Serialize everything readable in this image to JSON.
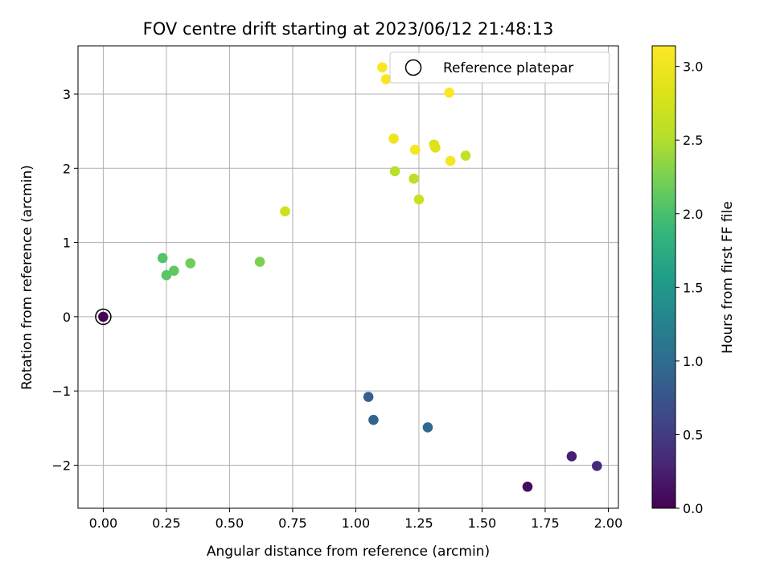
{
  "chart_data": {
    "type": "scatter",
    "title": "FOV centre drift starting at 2023/06/12 21:48:13",
    "xlabel": "Angular distance from reference (arcmin)",
    "ylabel": "Rotation from reference (arcmin)",
    "xlim": [
      -0.1,
      2.04
    ],
    "ylim": [
      -2.58,
      3.65
    ],
    "xticks": [
      0.0,
      0.25,
      0.5,
      0.75,
      1.0,
      1.25,
      1.5,
      1.75,
      2.0
    ],
    "xtick_labels": [
      "0.00",
      "0.25",
      "0.50",
      "0.75",
      "1.00",
      "1.25",
      "1.50",
      "1.75",
      "2.00"
    ],
    "yticks": [
      -2,
      -1,
      0,
      1,
      2,
      3
    ],
    "ytick_labels": [
      "−2",
      "−1",
      "0",
      "1",
      "2",
      "3"
    ],
    "grid": true,
    "colorbar": {
      "label": "Hours from first FF file",
      "range": [
        0.0,
        3.14
      ],
      "ticks": [
        0.0,
        0.5,
        1.0,
        1.5,
        2.0,
        2.5,
        3.0
      ],
      "tick_labels": [
        "0.0",
        "0.5",
        "1.0",
        "1.5",
        "2.0",
        "2.5",
        "3.0"
      ],
      "colormap": "viridis"
    },
    "legend": {
      "placement": "top-right",
      "entries": [
        "Reference platepar"
      ]
    },
    "reference_point": {
      "x": 0.0,
      "y": 0.0
    },
    "points": [
      {
        "x": 0.0,
        "y": 0.0,
        "hours": 0.0
      },
      {
        "x": 1.68,
        "y": -2.29,
        "hours": 0.08
      },
      {
        "x": 1.855,
        "y": -1.88,
        "hours": 0.25
      },
      {
        "x": 1.955,
        "y": -2.01,
        "hours": 0.35
      },
      {
        "x": 1.05,
        "y": -1.08,
        "hours": 0.85
      },
      {
        "x": 1.07,
        "y": -1.39,
        "hours": 0.9
      },
      {
        "x": 1.285,
        "y": -1.49,
        "hours": 0.95
      },
      {
        "x": 0.235,
        "y": 0.79,
        "hours": 2.05
      },
      {
        "x": 0.25,
        "y": 0.56,
        "hours": 2.08
      },
      {
        "x": 0.28,
        "y": 0.62,
        "hours": 2.12
      },
      {
        "x": 0.345,
        "y": 0.72,
        "hours": 2.2
      },
      {
        "x": 0.62,
        "y": 0.74,
        "hours": 2.25
      },
      {
        "x": 1.155,
        "y": 1.96,
        "hours": 2.55
      },
      {
        "x": 1.23,
        "y": 1.86,
        "hours": 2.58
      },
      {
        "x": 1.25,
        "y": 1.58,
        "hours": 2.68
      },
      {
        "x": 1.435,
        "y": 2.17,
        "hours": 2.62
      },
      {
        "x": 0.72,
        "y": 1.42,
        "hours": 2.72
      },
      {
        "x": 1.31,
        "y": 2.32,
        "hours": 2.8
      },
      {
        "x": 1.315,
        "y": 2.28,
        "hours": 2.85
      },
      {
        "x": 1.15,
        "y": 2.4,
        "hours": 3.0
      },
      {
        "x": 1.235,
        "y": 2.25,
        "hours": 3.05
      },
      {
        "x": 1.375,
        "y": 2.1,
        "hours": 3.06
      },
      {
        "x": 1.105,
        "y": 3.36,
        "hours": 3.1
      },
      {
        "x": 1.12,
        "y": 3.2,
        "hours": 3.08
      },
      {
        "x": 1.37,
        "y": 3.02,
        "hours": 3.12
      }
    ]
  }
}
